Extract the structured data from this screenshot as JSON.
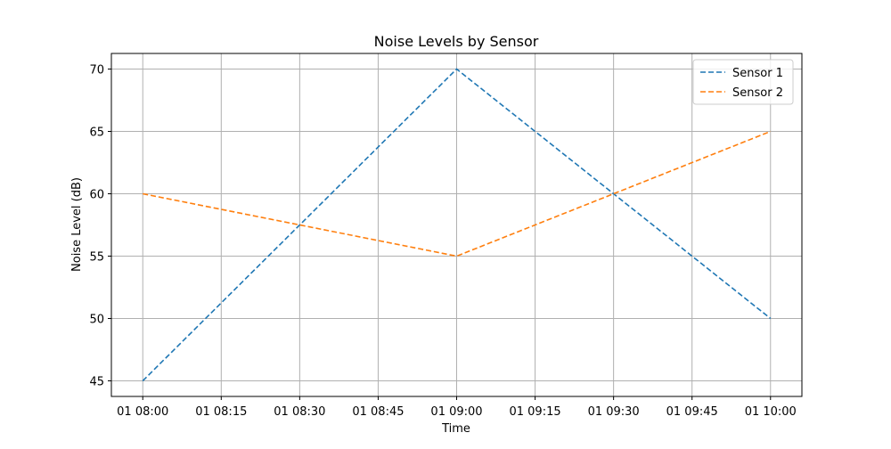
{
  "chart_data": {
    "type": "line",
    "title": "Noise Levels by Sensor",
    "xlabel": "Time",
    "ylabel": "Noise Level (dB)",
    "x": [
      "2023-01-01 08:00",
      "2023-01-01 09:00",
      "2023-01-01 10:00"
    ],
    "x_tick_labels": [
      "01 08:00",
      "01 08:15",
      "01 08:30",
      "01 08:45",
      "01 09:00",
      "01 09:15",
      "01 09:30",
      "01 09:45",
      "01 10:00"
    ],
    "x_tick_minutes": [
      0,
      15,
      30,
      45,
      60,
      75,
      90,
      105,
      120
    ],
    "x_point_minutes": [
      0,
      60,
      120
    ],
    "xlim_minutes": [
      -6,
      126
    ],
    "y_ticks": [
      45,
      50,
      55,
      60,
      65,
      70
    ],
    "ylim": [
      43.75,
      71.25
    ],
    "grid": true,
    "legend_position": "upper-right",
    "series": [
      {
        "name": "Sensor 1",
        "values": [
          45,
          70,
          50
        ],
        "color": "#1f77b4",
        "linestyle": "dashed"
      },
      {
        "name": "Sensor 2",
        "values": [
          60,
          55,
          65
        ],
        "color": "#ff7f0e",
        "linestyle": "dashed"
      }
    ]
  }
}
